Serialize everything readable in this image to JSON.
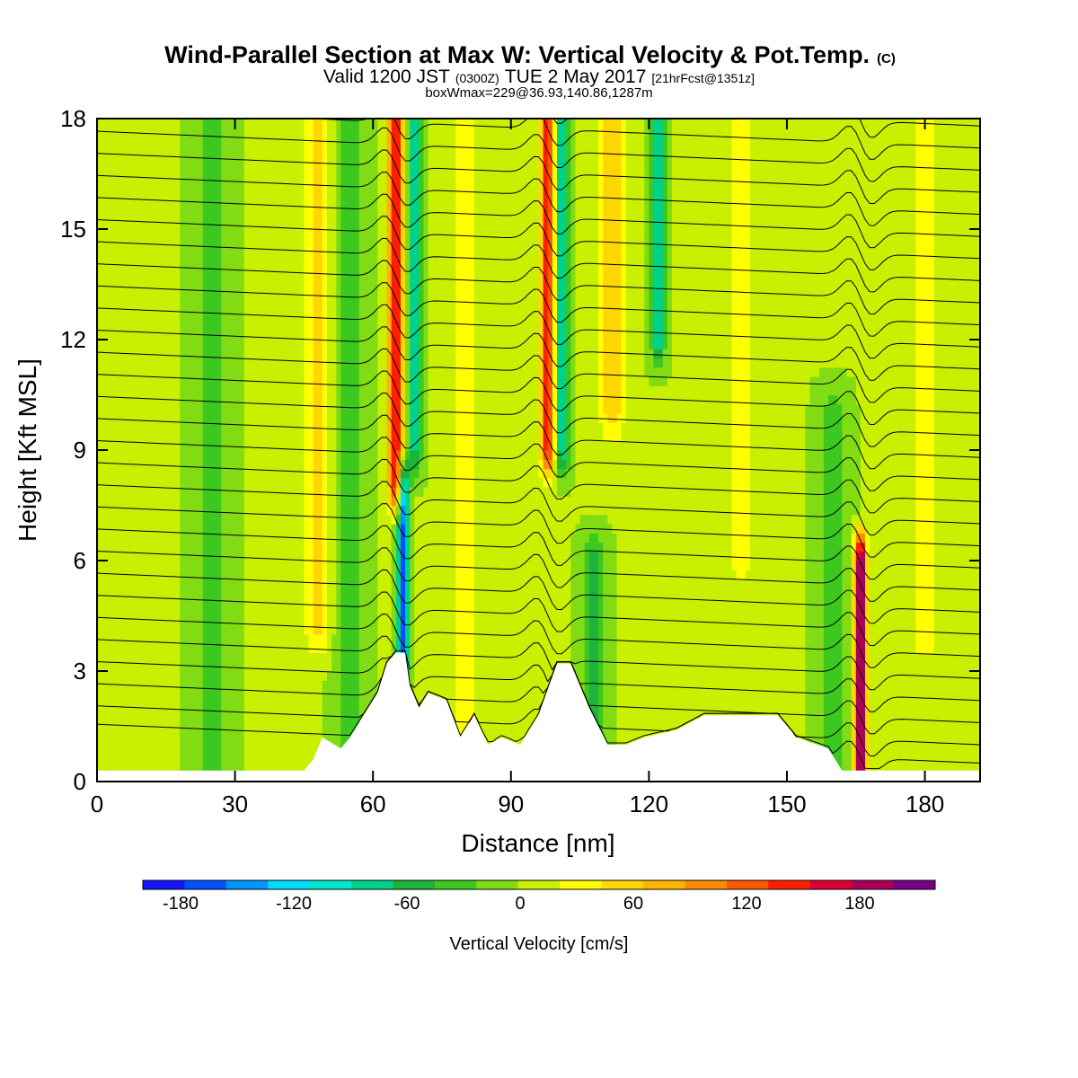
{
  "chart_data": {
    "type": "heatmap",
    "title": "Wind-Parallel Section at Max W: Vertical Velocity & Pot.Temp.",
    "title_mark": "(C)",
    "subtitle_main_a": "Valid 1200 JST",
    "subtitle_small_a": "(0300Z)",
    "subtitle_main_b": "TUE 2 May 2017",
    "subtitle_small_b": "[21hrFcst@1351z]",
    "subtitle3": "boxWmax=229@36.93,140.86,1287m",
    "xlabel": "Distance [nm]",
    "ylabel": "Height [Kft MSL]",
    "xlim": [
      0,
      192
    ],
    "ylim": [
      0,
      18
    ],
    "x_ticks": [
      "0",
      "30",
      "60",
      "90",
      "120",
      "150",
      "180"
    ],
    "x_tick_values": [
      0,
      30,
      60,
      90,
      120,
      150,
      180
    ],
    "y_ticks": [
      "0",
      "3",
      "6",
      "9",
      "12",
      "15",
      "18"
    ],
    "y_tick_values": [
      0,
      3,
      6,
      9,
      12,
      15,
      18
    ],
    "background_w": 0,
    "updraft_bands": [
      {
        "x": 65,
        "peak": 165,
        "width": 1.6,
        "ymin": 8,
        "ymax": 18
      },
      {
        "x": 98,
        "peak": 150,
        "width": 1.6,
        "ymin": 9,
        "ymax": 18
      },
      {
        "x": 166,
        "peak": 229,
        "width": 1.3,
        "ymin": 0,
        "ymax": 6
      },
      {
        "x": 112,
        "peak": 60,
        "width": 3.0,
        "ymin": 10,
        "ymax": 18
      },
      {
        "x": 48,
        "peak": 45,
        "width": 3.0,
        "ymin": 4,
        "ymax": 18
      },
      {
        "x": 80,
        "peak": 40,
        "width": 3.0,
        "ymin": 1,
        "ymax": 18
      },
      {
        "x": 140,
        "peak": 35,
        "width": 3.0,
        "ymin": 6,
        "ymax": 18
      },
      {
        "x": 180,
        "peak": 40,
        "width": 3.0,
        "ymin": 4,
        "ymax": 18
      },
      {
        "x": 10,
        "peak": 20,
        "width": 4.0,
        "ymin": 0,
        "ymax": 18
      }
    ],
    "downdraft_bands": [
      {
        "x": 66.5,
        "peak": -170,
        "width": 1.2,
        "ymin": 3.2,
        "ymax": 8
      },
      {
        "x": 101,
        "peak": -95,
        "width": 1.5,
        "ymin": 9,
        "ymax": 18
      },
      {
        "x": 69,
        "peak": -80,
        "width": 1.5,
        "ymin": 9,
        "ymax": 18
      },
      {
        "x": 122,
        "peak": -90,
        "width": 1.5,
        "ymin": 12,
        "ymax": 18
      },
      {
        "x": 108,
        "peak": -60,
        "width": 2.5,
        "ymin": 0,
        "ymax": 6
      },
      {
        "x": 55,
        "peak": -45,
        "width": 3.0,
        "ymin": 0,
        "ymax": 18
      },
      {
        "x": 25,
        "peak": -30,
        "width": 4.0,
        "ymin": 0,
        "ymax": 18
      },
      {
        "x": 160,
        "peak": -40,
        "width": 3.0,
        "ymin": 0,
        "ymax": 10
      }
    ],
    "terrain_kft": [
      [
        0,
        0.3
      ],
      [
        45,
        0.3
      ],
      [
        47,
        0.6
      ],
      [
        49,
        1.2
      ],
      [
        53,
        0.9
      ],
      [
        55,
        1.2
      ],
      [
        58,
        1.8
      ],
      [
        61,
        2.4
      ],
      [
        63,
        3.2
      ],
      [
        65,
        3.5
      ],
      [
        67,
        3.5
      ],
      [
        68,
        2.6
      ],
      [
        70,
        2.0
      ],
      [
        72,
        2.4
      ],
      [
        76,
        2.2
      ],
      [
        79,
        1.2
      ],
      [
        82,
        1.8
      ],
      [
        85,
        1.0
      ],
      [
        88,
        1.2
      ],
      [
        92,
        1.0
      ],
      [
        96,
        1.8
      ],
      [
        100,
        3.2
      ],
      [
        103,
        3.2
      ],
      [
        107,
        2.0
      ],
      [
        111,
        1.0
      ],
      [
        115,
        1.0
      ],
      [
        119,
        1.2
      ],
      [
        126,
        1.4
      ],
      [
        132,
        1.8
      ],
      [
        148,
        1.8
      ],
      [
        152,
        1.2
      ],
      [
        159,
        0.9
      ],
      [
        162,
        0.3
      ],
      [
        192,
        0.3
      ]
    ],
    "theta_contours": {
      "base_heights": [
        0.5,
        1.0,
        1.6,
        2.2,
        2.8,
        3.4,
        4.0,
        4.6,
        5.2,
        5.8,
        6.4,
        7.0,
        7.6,
        8.2,
        8.8,
        9.4,
        10.0,
        10.6,
        11.2,
        11.8,
        12.4,
        13.0,
        13.6,
        14.2,
        14.8,
        15.4,
        16.0,
        16.6,
        17.2,
        17.8
      ],
      "slope_kft_per_nm": 0.022,
      "wave_amplitude": 0.9,
      "wave_centers": [
        65,
        98,
        166
      ]
    },
    "colorbar": {
      "colors": [
        "#1414ff",
        "#0050ff",
        "#0096ff",
        "#00dcff",
        "#00e6c8",
        "#00d28c",
        "#1eb43c",
        "#3cc81e",
        "#82dc14",
        "#c8f000",
        "#ffff00",
        "#ffd700",
        "#ffb400",
        "#ff8c00",
        "#ff5a00",
        "#ff1e00",
        "#dc0032",
        "#aa005a",
        "#780082"
      ],
      "ticks": [
        "-180",
        "-120",
        "-60",
        "0",
        "60",
        "120",
        "180"
      ],
      "tick_values": [
        -180,
        -120,
        -60,
        0,
        60,
        120,
        180
      ],
      "min": -200,
      "max": 220,
      "label": "Vertical Velocity [cm/s]"
    }
  }
}
